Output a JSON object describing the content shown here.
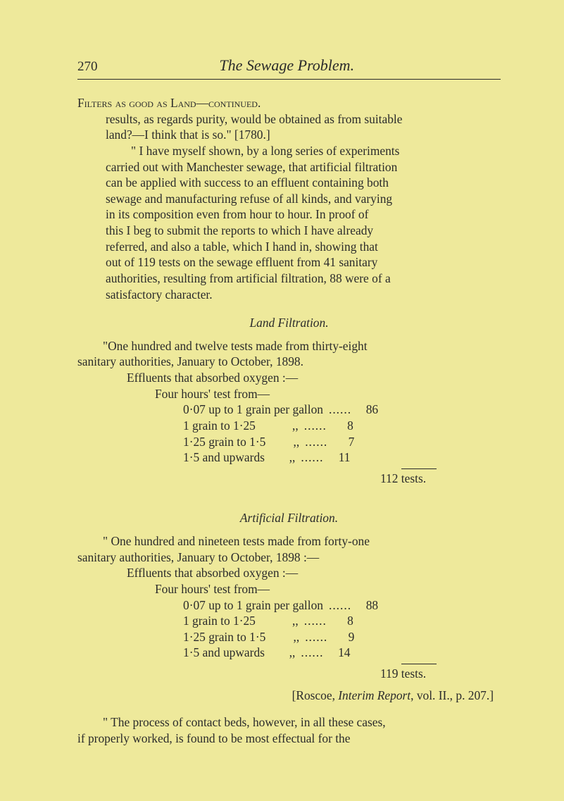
{
  "page": {
    "number": "270",
    "running_title": "The Sewage Problem."
  },
  "heading": {
    "line": "Filters as good as Land—continued."
  },
  "para1": {
    "l1": "results, as regards purity, would be obtained as from suitable",
    "l2": "land?—I think that is so.\"   [1780.]"
  },
  "para2": {
    "l1": "\" I have myself shown, by a long series of experiments",
    "l2": "carried out with Manchester sewage, that artificial filtration",
    "l3": "can be applied with success to an effluent containing both",
    "l4": "sewage and manufacturing refuse of all kinds, and varying",
    "l5": "in its composition even from hour to hour.  In proof of",
    "l6": "this I beg to submit the reports to which I have already",
    "l7": "referred, and also a table, which I hand in, showing that",
    "l8": "out of 119 tests on the sewage effluent from 41 sanitary",
    "l9": "authorities, resulting from artificial filtration, 88 were of a",
    "l10": "satisfactory character."
  },
  "sec1": {
    "title": "Land Filtration.",
    "intro1": "\"One hundred and twelve tests made from thirty-eight",
    "intro2": "sanitary authorities, January to October, 1898.",
    "eff": "Effluents that absorbed oxygen :—",
    "four": "Four hours' test from—",
    "rows": [
      {
        "label": "0·07 up to 1 grain per gallon",
        "dots": "......",
        "val": "86"
      },
      {
        "label": "1 grain to 1·25            ,,",
        "dots": "......",
        "val": "8"
      },
      {
        "label": "1·25 grain to 1·5         ,,",
        "dots": "......",
        "val": "7"
      },
      {
        "label": "1·5 and upwards        ,,",
        "dots": "......",
        "val": "11"
      }
    ],
    "total": "112 tests."
  },
  "sec2": {
    "title": "Artificial Filtration.",
    "intro1": "\" One hundred and nineteen tests made from forty-one",
    "intro2": "sanitary authorities, January to October, 1898 :—",
    "eff": "Effluents that absorbed oxygen :—",
    "four": "Four hours' test from—",
    "rows": [
      {
        "label": "0·07 up to 1 grain per gallon",
        "dots": "......",
        "val": "88"
      },
      {
        "label": "1 grain to 1·25            ,,",
        "dots": "......",
        "val": "8"
      },
      {
        "label": "1·25 grain to 1·5         ,,",
        "dots": "......",
        "val": "9"
      },
      {
        "label": "1·5 and upwards        ,,",
        "dots": "......",
        "val": "14"
      }
    ],
    "total": "119 tests.",
    "cite": "[Roscoe, Interim Report, vol. II., p. 207.]"
  },
  "closing": {
    "l1": "\" The process of contact beds, however, in all these cases,",
    "l2": "if properly worked, is found to be most effectual for the"
  },
  "style": {
    "background": "#eee99b",
    "text_color": "#2b2b2b",
    "body_font_size_pt": 13,
    "title_font_size_pt": 16
  }
}
